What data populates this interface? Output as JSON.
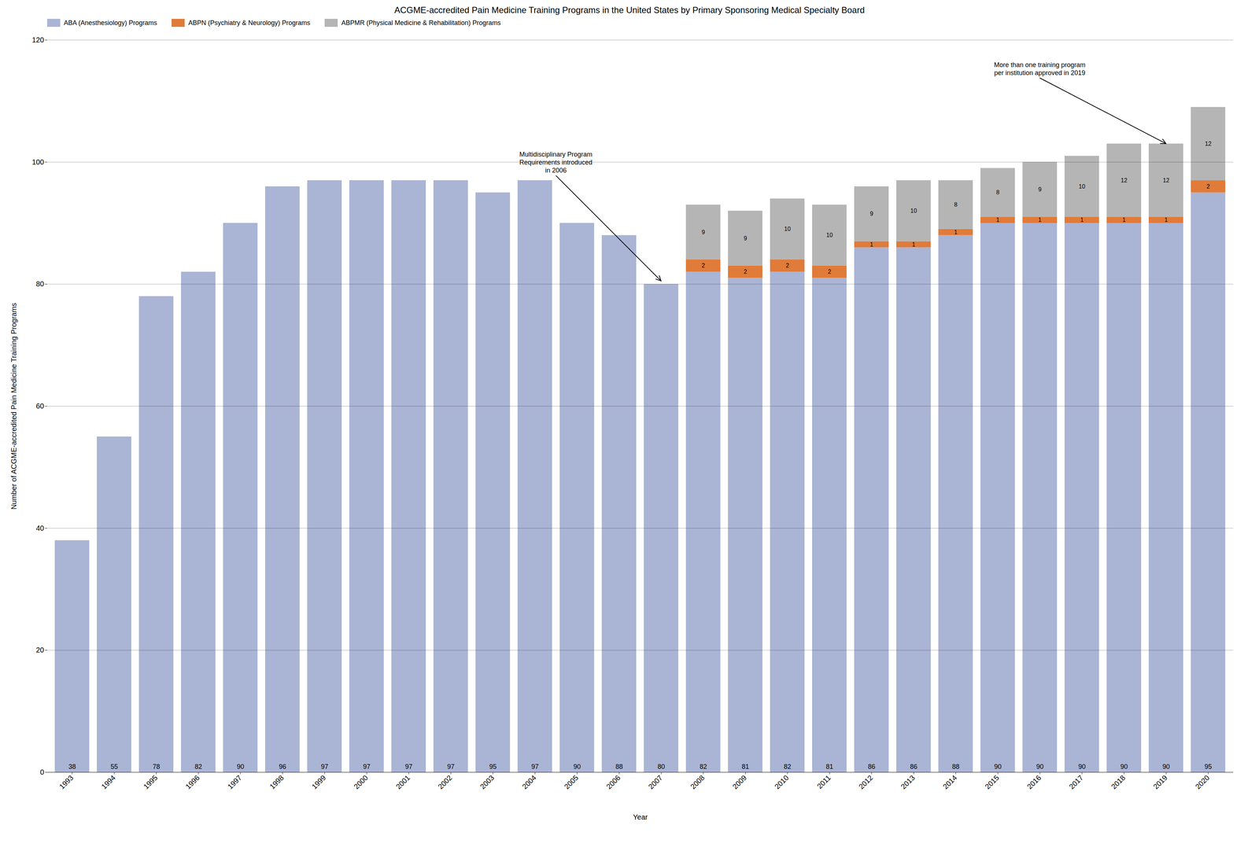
{
  "chart_data": {
    "type": "bar",
    "title": "ACGME-accredited Pain Medicine Training Programs in the United States by Primary Sponsoring Medical Specialty Board",
    "x_label": "Year",
    "y_label": "Number of ACGME-accredited Pain Medicine Training Programs",
    "categories": [
      "1993",
      "1994",
      "1995",
      "1996",
      "1997",
      "1998",
      "1999",
      "2000",
      "2001",
      "2002",
      "2003",
      "2004",
      "2005",
      "2006",
      "2007",
      "2008",
      "2009",
      "2010",
      "2011",
      "2012",
      "2013",
      "2014",
      "2015",
      "2016",
      "2017",
      "2018",
      "2019",
      "2020"
    ],
    "series": [
      {
        "name": "ABA (Anesthesiology) Programs",
        "color": "#aab4d4",
        "values": [
          38,
          55,
          78,
          82,
          90,
          96,
          97,
          97,
          97,
          97,
          95,
          97,
          90,
          88,
          80,
          82,
          81,
          82,
          81,
          86,
          86,
          88,
          90,
          90,
          90,
          90,
          90,
          95
        ]
      },
      {
        "name": "ABPN (Psychiatry & Neurology) Programs",
        "color": "#e07b39",
        "values": [
          0,
          0,
          0,
          0,
          0,
          0,
          0,
          0,
          0,
          0,
          0,
          0,
          0,
          0,
          0,
          2,
          2,
          2,
          2,
          1,
          1,
          1,
          1,
          1,
          1,
          1,
          1,
          2
        ]
      },
      {
        "name": "ABPMR (Physical Medicine & Rehabilitation) Programs",
        "color": "#b5b5b5",
        "values": [
          0,
          0,
          0,
          0,
          0,
          0,
          0,
          0,
          0,
          0,
          0,
          0,
          0,
          0,
          0,
          9,
          9,
          10,
          10,
          9,
          10,
          8,
          8,
          9,
          10,
          12,
          12,
          12
        ]
      }
    ],
    "stacked": true,
    "ylim": [
      0,
      120
    ],
    "yticks": [
      0,
      20,
      40,
      60,
      80,
      100,
      120
    ],
    "grid": true,
    "legend": "upper left",
    "data_labels": true,
    "annotations": [
      {
        "text": "Multidisciplinary Program\nRequirements introduced\nin 2006",
        "x": "2007",
        "y": 80.5
      },
      {
        "text": "More than one training program\nper institution approved in 2019",
        "x": "2019",
        "y": 103
      }
    ]
  }
}
